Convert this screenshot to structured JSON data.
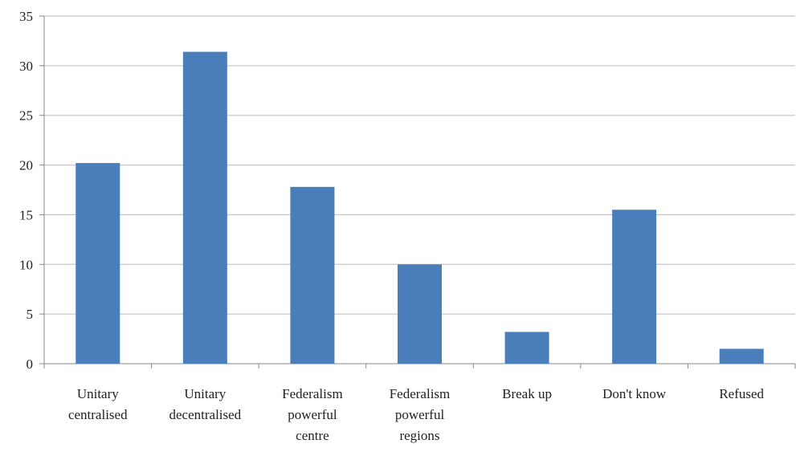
{
  "chart_data": {
    "type": "bar",
    "title": "",
    "xlabel": "",
    "ylabel": "",
    "categories": [
      "Unitary centralised",
      "Unitary decentralised",
      "Federalism powerful centre",
      "Federalism powerful regions",
      "Break up",
      "Don't know",
      "Refused"
    ],
    "category_lines": [
      [
        "Unitary",
        "centralised"
      ],
      [
        "Unitary",
        "decentralised"
      ],
      [
        "Federalism",
        "powerful",
        "centre"
      ],
      [
        "Federalism",
        "powerful",
        "regions"
      ],
      [
        "Break up"
      ],
      [
        "Don't know"
      ],
      [
        "Refused"
      ]
    ],
    "values": [
      20.2,
      31.4,
      17.8,
      10.0,
      3.2,
      15.5,
      1.5
    ],
    "ylim": [
      0,
      35
    ],
    "yticks": [
      0,
      5,
      10,
      15,
      20,
      25,
      30,
      35
    ],
    "grid": true,
    "legend": "none",
    "colors": {
      "bar": "#4a7ebb",
      "grid": "#c8c8c8",
      "axis": "#888888"
    }
  }
}
